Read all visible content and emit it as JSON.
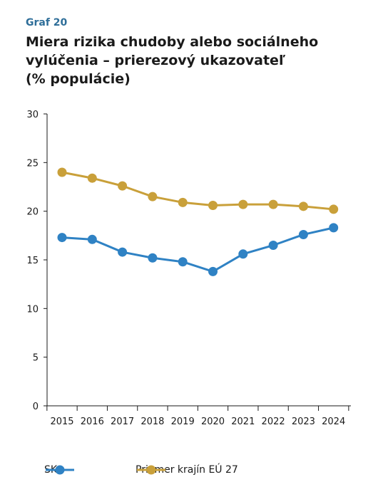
{
  "header": {
    "label": "Graf 20",
    "title_lines": [
      "Miera rizika chudoby alebo sociálneho",
      "vylúčenia – prierezový ukazovateľ",
      "(% populácie)"
    ]
  },
  "colors": {
    "SK": "#2f82c4",
    "EU": "#c9a03a",
    "axis": "#1a1a1a"
  },
  "chart_data": {
    "type": "line",
    "title": "Miera rizika chudoby alebo sociálneho vylúčenia – prierezový ukazovateľ (% populácie)",
    "x": [
      "2015",
      "2016",
      "2017",
      "2018",
      "2019",
      "2020",
      "2021",
      "2022",
      "2023",
      "2024"
    ],
    "ylim": [
      0,
      30
    ],
    "yticks": [
      0,
      5,
      10,
      15,
      20,
      25,
      30
    ],
    "grid": false,
    "legend_position": "bottom",
    "series": [
      {
        "name": "SK",
        "color": "#2f82c4",
        "values": [
          17.3,
          17.1,
          15.8,
          15.2,
          14.8,
          13.8,
          15.6,
          16.5,
          17.6,
          18.3
        ]
      },
      {
        "name": "Priemer krajín EÚ 27",
        "color": "#c9a03a",
        "values": [
          24.0,
          23.4,
          22.6,
          21.5,
          20.9,
          20.6,
          20.7,
          20.7,
          20.5,
          20.2
        ]
      }
    ]
  }
}
